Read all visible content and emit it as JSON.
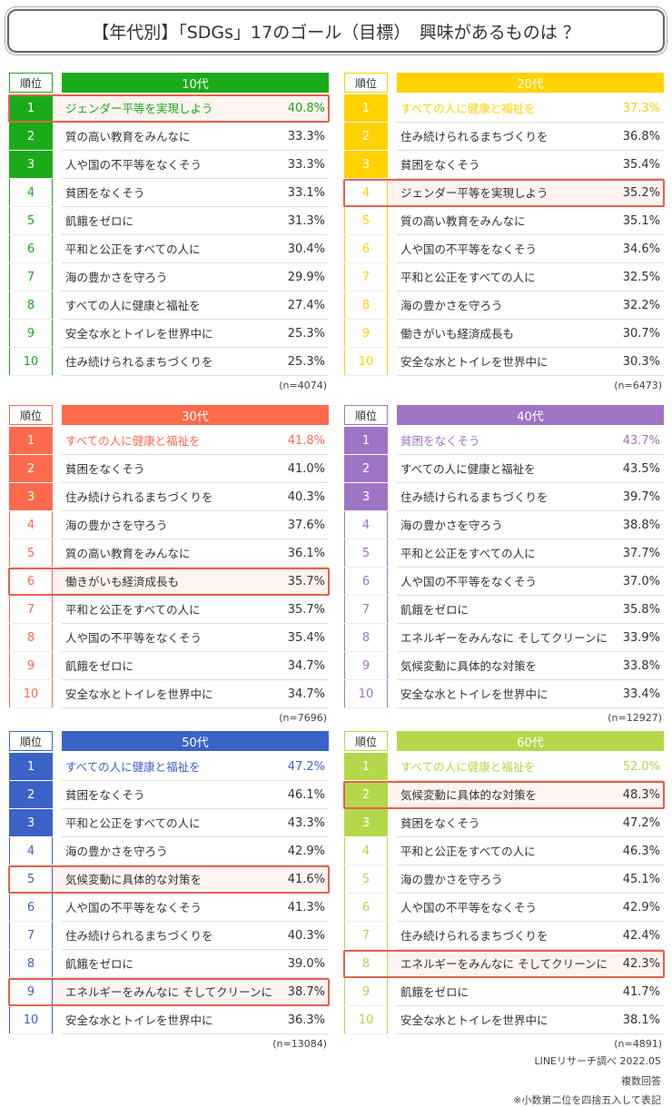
{
  "title": "【年代別】「SDGs」17のゴール（目標）　興味があるものは ？",
  "panels": [
    {
      "age": "10代",
      "rank_header": "順位",
      "color": "#1aab1a",
      "highlight": [
        0
      ],
      "n": "(n=4074)",
      "rows": [
        {
          "rank": "1",
          "label": "ジェンダー平等を実現しよう",
          "value": "40.8%"
        },
        {
          "rank": "2",
          "label": "質の高い教育をみんなに",
          "value": "33.3%"
        },
        {
          "rank": "3",
          "label": "人や国の不平等をなくそう",
          "value": "33.3%"
        },
        {
          "rank": "4",
          "label": "貧困をなくそう",
          "value": "33.1%"
        },
        {
          "rank": "5",
          "label": "飢餓をゼロに",
          "value": "31.3%"
        },
        {
          "rank": "6",
          "label": "平和と公正をすべての人に",
          "value": "30.4%"
        },
        {
          "rank": "7",
          "label": "海の豊かさを守ろう",
          "value": "29.9%"
        },
        {
          "rank": "8",
          "label": "すべての人に健康と福祉を",
          "value": "27.4%"
        },
        {
          "rank": "9",
          "label": "安全な水とトイレを世界中に",
          "value": "25.3%"
        },
        {
          "rank": "10",
          "label": "住み続けられるまちづくりを",
          "value": "25.3%"
        }
      ]
    },
    {
      "age": "20代",
      "rank_header": "順位",
      "color": "#ffd200",
      "highlight": [
        3
      ],
      "n": "(n=6473)",
      "rows": [
        {
          "rank": "1",
          "label": "すべての人に健康と福祉を",
          "value": "37.3%"
        },
        {
          "rank": "2",
          "label": "住み続けられるまちづくりを",
          "value": "36.8%"
        },
        {
          "rank": "3",
          "label": "貧困をなくそう",
          "value": "35.4%"
        },
        {
          "rank": "4",
          "label": "ジェンダー平等を実現しよう",
          "value": "35.2%"
        },
        {
          "rank": "5",
          "label": "質の高い教育をみんなに",
          "value": "35.1%"
        },
        {
          "rank": "6",
          "label": "人や国の不平等をなくそう",
          "value": "34.6%"
        },
        {
          "rank": "7",
          "label": "平和と公正をすべての人に",
          "value": "32.5%"
        },
        {
          "rank": "8",
          "label": "海の豊かさを守ろう",
          "value": "32.2%"
        },
        {
          "rank": "9",
          "label": "働きがいも経済成長も",
          "value": "30.7%"
        },
        {
          "rank": "10",
          "label": "安全な水とトイレを世界中に",
          "value": "30.3%"
        }
      ]
    },
    {
      "age": "30代",
      "rank_header": "順位",
      "color": "#ff6a4d",
      "highlight": [
        5
      ],
      "n": "(n=7696)",
      "rows": [
        {
          "rank": "1",
          "label": "すべての人に健康と福祉を",
          "value": "41.8%"
        },
        {
          "rank": "2",
          "label": "貧困をなくそう",
          "value": "41.0%"
        },
        {
          "rank": "3",
          "label": "住み続けられるまちづくりを",
          "value": "40.3%"
        },
        {
          "rank": "4",
          "label": "海の豊かさを守ろう",
          "value": "37.6%"
        },
        {
          "rank": "5",
          "label": "質の高い教育をみんなに",
          "value": "36.1%"
        },
        {
          "rank": "6",
          "label": "働きがいも経済成長も",
          "value": "35.7%"
        },
        {
          "rank": "7",
          "label": "平和と公正をすべての人に",
          "value": "35.7%"
        },
        {
          "rank": "8",
          "label": "人や国の不平等をなくそう",
          "value": "35.4%"
        },
        {
          "rank": "9",
          "label": "飢餓をゼロに",
          "value": "34.7%"
        },
        {
          "rank": "10",
          "label": "安全な水とトイレを世界中に",
          "value": "34.7%"
        }
      ]
    },
    {
      "age": "40代",
      "rank_header": "順位",
      "color": "#a074c4",
      "highlight": [],
      "n": "(n=12927)",
      "rows": [
        {
          "rank": "1",
          "label": "貧困をなくそう",
          "value": "43.7%"
        },
        {
          "rank": "2",
          "label": "すべての人に健康と福祉を",
          "value": "43.5%"
        },
        {
          "rank": "3",
          "label": "住み続けられるまちづくりを",
          "value": "39.7%"
        },
        {
          "rank": "4",
          "label": "海の豊かさを守ろう",
          "value": "38.8%"
        },
        {
          "rank": "5",
          "label": "平和と公正をすべての人に",
          "value": "37.7%"
        },
        {
          "rank": "6",
          "label": "人や国の不平等をなくそう",
          "value": "37.0%"
        },
        {
          "rank": "7",
          "label": "飢餓をゼロに",
          "value": "35.8%"
        },
        {
          "rank": "8",
          "label": "エネルギーをみんなに そしてクリーンに",
          "value": "33.9%"
        },
        {
          "rank": "9",
          "label": "気候変動に具体的な対策を",
          "value": "33.8%"
        },
        {
          "rank": "10",
          "label": "安全な水とトイレを世界中に",
          "value": "33.4%"
        }
      ]
    },
    {
      "age": "50代",
      "rank_header": "順位",
      "color": "#3a63c8",
      "highlight": [
        4,
        8
      ],
      "n": "(n=13084)",
      "rows": [
        {
          "rank": "1",
          "label": "すべての人に健康と福祉を",
          "value": "47.2%"
        },
        {
          "rank": "2",
          "label": "貧困をなくそう",
          "value": "46.1%"
        },
        {
          "rank": "3",
          "label": "平和と公正をすべての人に",
          "value": "43.3%"
        },
        {
          "rank": "4",
          "label": "海の豊かさを守ろう",
          "value": "42.9%"
        },
        {
          "rank": "5",
          "label": "気候変動に具体的な対策を",
          "value": "41.6%"
        },
        {
          "rank": "6",
          "label": "人や国の不平等をなくそう",
          "value": "41.3%"
        },
        {
          "rank": "7",
          "label": "住み続けられるまちづくりを",
          "value": "40.3%"
        },
        {
          "rank": "8",
          "label": "飢餓をゼロに",
          "value": "39.0%"
        },
        {
          "rank": "9",
          "label": "エネルギーをみんなに そしてクリーンに",
          "value": "38.7%"
        },
        {
          "rank": "10",
          "label": "安全な水とトイレを世界中に",
          "value": "36.3%"
        }
      ]
    },
    {
      "age": "60代",
      "rank_header": "順位",
      "color": "#b3d84a",
      "highlight": [
        1,
        7
      ],
      "n": "(n=4891)",
      "rows": [
        {
          "rank": "1",
          "label": "すべての人に健康と福祉を",
          "value": "52.0%"
        },
        {
          "rank": "2",
          "label": "気候変動に具体的な対策を",
          "value": "48.3%"
        },
        {
          "rank": "3",
          "label": "貧困をなくそう",
          "value": "47.2%"
        },
        {
          "rank": "4",
          "label": "平和と公正をすべての人に",
          "value": "46.3%"
        },
        {
          "rank": "5",
          "label": "海の豊かさを守ろう",
          "value": "45.1%"
        },
        {
          "rank": "6",
          "label": "人や国の不平等をなくそう",
          "value": "42.9%"
        },
        {
          "rank": "7",
          "label": "住み続けられるまちづくりを",
          "value": "42.4%"
        },
        {
          "rank": "8",
          "label": "エネルギーをみんなに そしてクリーンに",
          "value": "42.3%"
        },
        {
          "rank": "9",
          "label": "飢餓をゼロに",
          "value": "41.7%"
        },
        {
          "rank": "10",
          "label": "安全な水とトイレを世界中に",
          "value": "38.1%"
        }
      ]
    }
  ],
  "footer": [
    "LINEリサーチ調べ 2022.05",
    "複数回答",
    "※小数第二位を四捨五入して表記"
  ]
}
